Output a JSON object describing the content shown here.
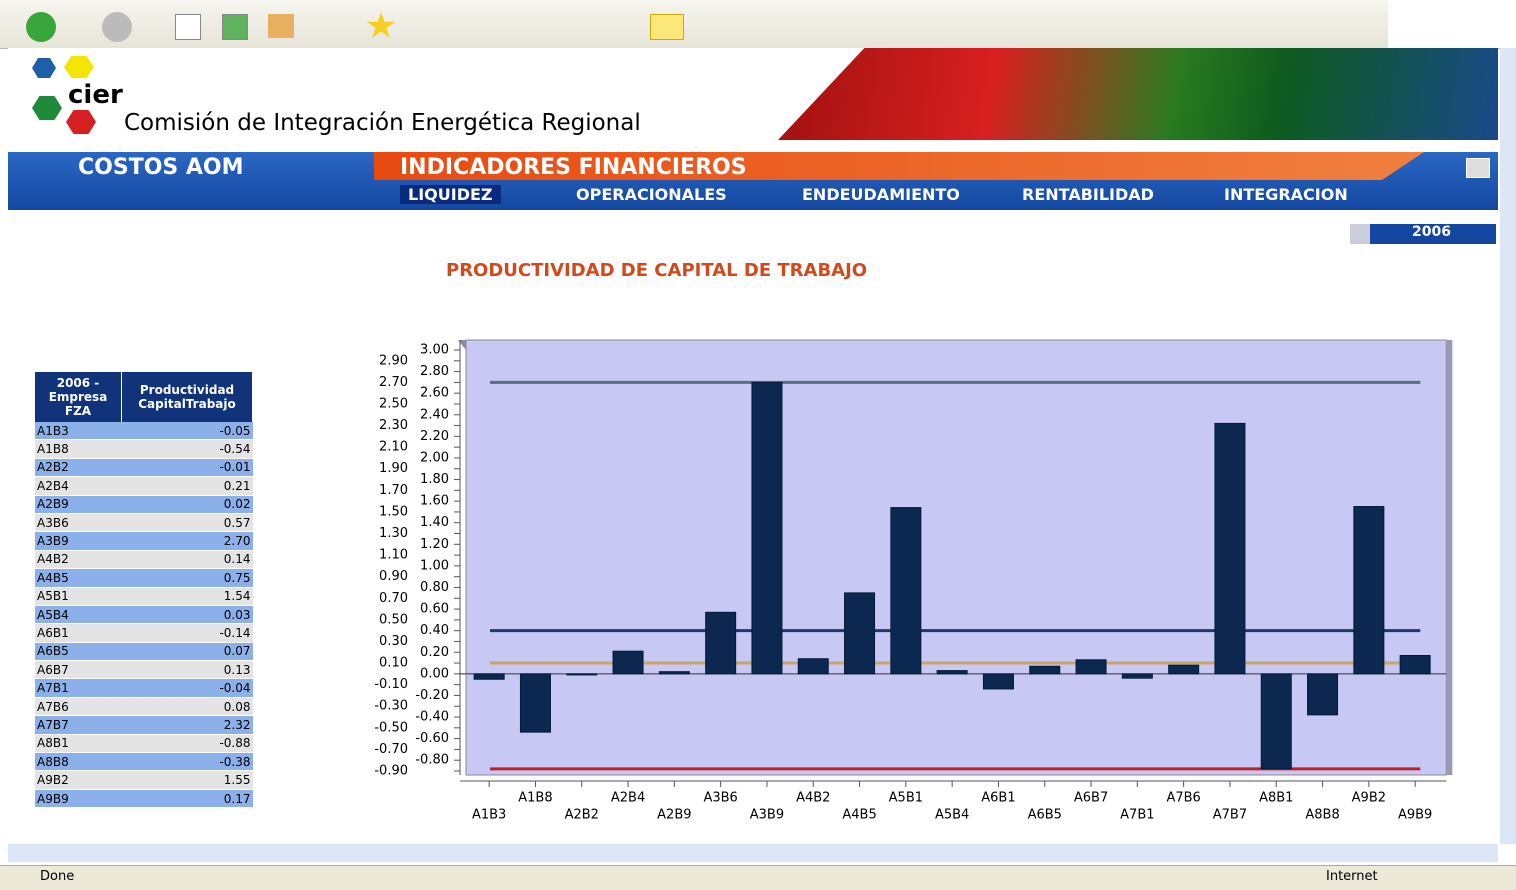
{
  "browser": {
    "status": "Done",
    "zone": "Internet"
  },
  "header": {
    "logo": "cier",
    "title": "Comisión de Integración Energética Regional"
  },
  "nav": {
    "left": "COSTOS AOM",
    "main": "INDICADORES FINANCIEROS",
    "items": [
      "LIQUIDEZ",
      "OPERACIONALES",
      "ENDEUDAMIENTO",
      "RENTABILIDAD",
      "INTEGRACION"
    ]
  },
  "year": "2006",
  "table": {
    "header": [
      "2006 - Empresa FZA",
      "Productividad CapitalTrabajo"
    ],
    "rows": [
      [
        "A1B3",
        "-0.05"
      ],
      [
        "A1B8",
        "-0.54"
      ],
      [
        "A2B2",
        "-0.01"
      ],
      [
        "A2B4",
        "0.21"
      ],
      [
        "A2B9",
        "0.02"
      ],
      [
        "A3B6",
        "0.57"
      ],
      [
        "A3B9",
        "2.70"
      ],
      [
        "A4B2",
        "0.14"
      ],
      [
        "A4B5",
        "0.75"
      ],
      [
        "A5B1",
        "1.54"
      ],
      [
        "A5B4",
        "0.03"
      ],
      [
        "A6B1",
        "-0.14"
      ],
      [
        "A6B5",
        "0.07"
      ],
      [
        "A6B7",
        "0.13"
      ],
      [
        "A7B1",
        "-0.04"
      ],
      [
        "A7B6",
        "0.08"
      ],
      [
        "A7B7",
        "2.32"
      ],
      [
        "A8B1",
        "-0.88"
      ],
      [
        "A8B8",
        "-0.38"
      ],
      [
        "A9B2",
        "1.55"
      ],
      [
        "A9B9",
        "0.17"
      ]
    ]
  },
  "chart_data": {
    "type": "bar",
    "title": "PRODUCTIVIDAD DE CAPITAL DE TRABAJO",
    "categories": [
      "A1B3",
      "A1B8",
      "A2B2",
      "A2B4",
      "A2B9",
      "A3B6",
      "A3B9",
      "A4B2",
      "A4B5",
      "A5B1",
      "A5B4",
      "A6B1",
      "A6B5",
      "A6B7",
      "A7B1",
      "A7B6",
      "A7B7",
      "A8B1",
      "A8B8",
      "A9B2",
      "A9B9"
    ],
    "values": [
      -0.05,
      -0.54,
      -0.01,
      0.21,
      0.02,
      0.57,
      2.7,
      0.14,
      0.75,
      1.54,
      0.03,
      -0.14,
      0.07,
      0.13,
      -0.04,
      0.08,
      2.32,
      -0.88,
      -0.38,
      1.55,
      0.17
    ],
    "color": "#0c2750",
    "ylim": [
      -0.9,
      3.0
    ],
    "yticks": [
      {
        "value": -0.9,
        "label": "-0.90"
      },
      {
        "value": -0.8,
        "label": "-0.80"
      },
      {
        "value": -0.7,
        "label": "-0.70"
      },
      {
        "value": -0.6,
        "label": "-0.60"
      },
      {
        "value": -0.5,
        "label": "-0.50"
      },
      {
        "value": -0.4,
        "label": "-0.40"
      },
      {
        "value": -0.3,
        "label": "-0.30"
      },
      {
        "value": -0.2,
        "label": "-0.20"
      },
      {
        "value": -0.1,
        "label": "-0.10"
      },
      {
        "value": 0,
        "label": "0.00"
      },
      {
        "value": 0.1,
        "label": "0.10"
      },
      {
        "value": 0.2,
        "label": "0.20"
      },
      {
        "value": 0.3,
        "label": "0.30"
      },
      {
        "value": 0.4,
        "label": "0.40"
      },
      {
        "value": 0.5,
        "label": "0.50"
      },
      {
        "value": 0.6,
        "label": "0.60"
      },
      {
        "value": 0.7,
        "label": "0.70"
      },
      {
        "value": 0.8,
        "label": "0.80"
      },
      {
        "value": 0.9,
        "label": "0.90"
      },
      {
        "value": 1,
        "label": "1.00"
      },
      {
        "value": 1.1,
        "label": "1.10"
      },
      {
        "value": 1.2,
        "label": "1.20"
      },
      {
        "value": 1.3,
        "label": "1.30"
      },
      {
        "value": 1.4,
        "label": "1.40"
      },
      {
        "value": 1.5,
        "label": "1.50"
      },
      {
        "value": 1.6,
        "label": "1.60"
      },
      {
        "value": 1.7,
        "label": "1.70"
      },
      {
        "value": 1.8,
        "label": "1.80"
      },
      {
        "value": 1.9,
        "label": "1.90"
      },
      {
        "value": 2,
        "label": "2.00"
      },
      {
        "value": 2.1,
        "label": "2.10"
      },
      {
        "value": 2.2,
        "label": "2.20"
      },
      {
        "value": 2.3,
        "label": "2.30"
      },
      {
        "value": 2.4,
        "label": "2.40"
      },
      {
        "value": 2.5,
        "label": "2.50"
      },
      {
        "value": 2.6,
        "label": "2.60"
      },
      {
        "value": 2.7,
        "label": "2.70"
      },
      {
        "value": 2.8,
        "label": "2.80"
      },
      {
        "value": 2.9,
        "label": "2.90"
      },
      {
        "value": 3,
        "label": "3.00"
      }
    ],
    "reference_lines": [
      {
        "value": 2.7,
        "color": "#5c6b86"
      },
      {
        "value": 0.4,
        "color": "#1f3a66"
      },
      {
        "value": 0.1,
        "color": "#c8a46a"
      },
      {
        "value": -0.88,
        "color": "#c0202a"
      }
    ]
  }
}
